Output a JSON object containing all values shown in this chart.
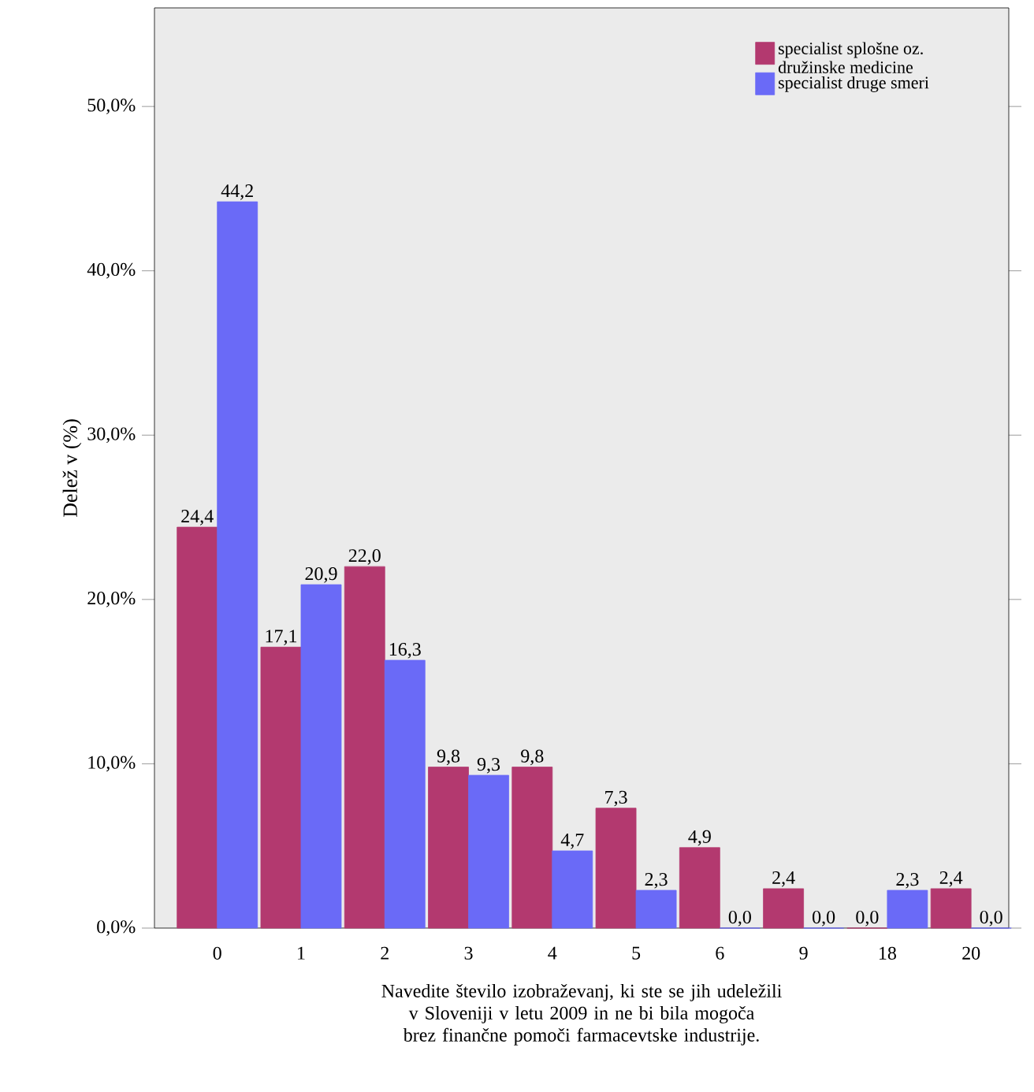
{
  "chart_data": {
    "type": "bar",
    "xlabel": "Navedite število izobraževanj, ki ste se jih udeležili v Sloveniji v letu 2009 in ne bi bila mogoča brez finančne pomoči farmacevtske industrije.",
    "ylabel": "Delež v (%)",
    "categories": [
      "0",
      "1",
      "2",
      "3",
      "4",
      "5",
      "6",
      "9",
      "18",
      "20"
    ],
    "series": [
      {
        "name": "specialist splošne oz. družinske medicine",
        "color": "#b3396f",
        "values": [
          24.4,
          17.1,
          22.0,
          9.8,
          9.8,
          7.3,
          4.9,
          2.4,
          0.0,
          2.4
        ],
        "value_labels": [
          "24,4",
          "17,1",
          "22,0",
          "9,8",
          "9,8",
          "7,3",
          "4,9",
          "2,4",
          "0,0",
          "2,4"
        ]
      },
      {
        "name": "specialist druge smeri",
        "color": "#6a6af7",
        "values": [
          44.2,
          20.9,
          16.3,
          9.3,
          4.7,
          2.3,
          0.0,
          0.0,
          2.3,
          0.0
        ],
        "value_labels": [
          "44,2",
          "20,9",
          "16,3",
          "9,3",
          "4,7",
          "2,3",
          "0,0",
          "0,0",
          "2,3",
          "0,0"
        ]
      }
    ],
    "ylim": [
      0,
      56
    ],
    "yticks": [
      {
        "value": 0,
        "label": "0,0%"
      },
      {
        "value": 10,
        "label": "10,0%"
      },
      {
        "value": 20,
        "label": "20,0%"
      },
      {
        "value": 30,
        "label": "30,0%"
      },
      {
        "value": 40,
        "label": "40,0%"
      },
      {
        "value": 50,
        "label": "50,0%"
      }
    ],
    "legend": "top right"
  }
}
